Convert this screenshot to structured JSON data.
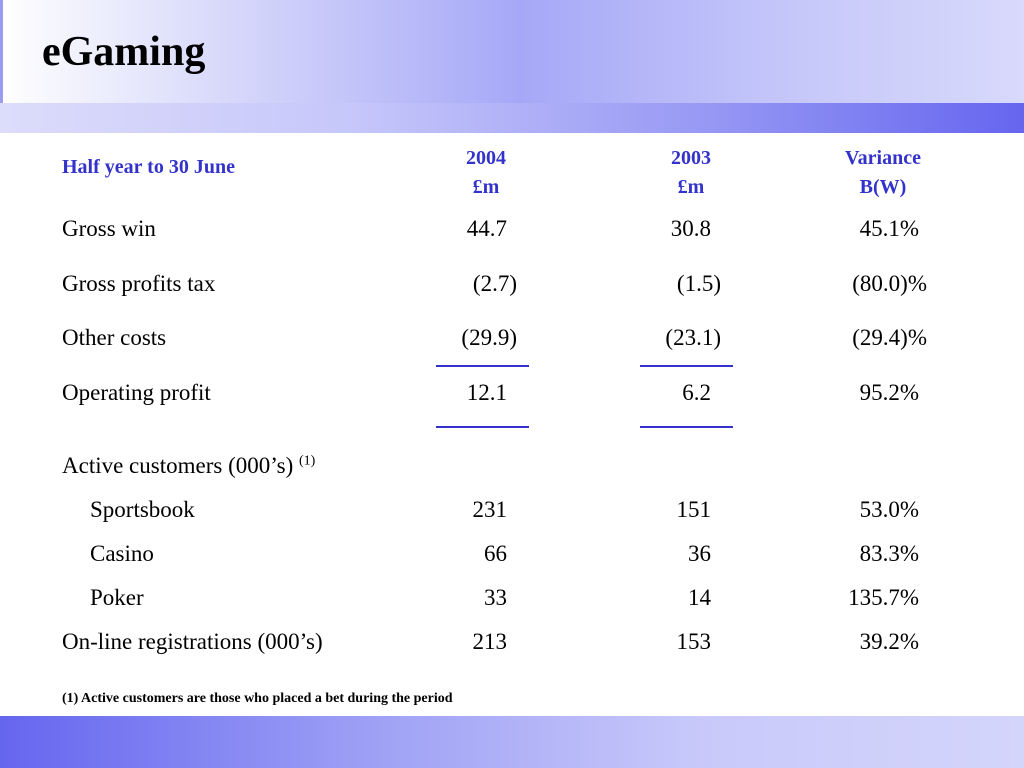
{
  "title": "eGaming",
  "table": {
    "header": {
      "label": "Half year to 30 June",
      "col_2004": {
        "year": "2004",
        "unit": "£m"
      },
      "col_2003": {
        "year": "2003",
        "unit": "£m"
      },
      "col_variance": {
        "line1": "Variance",
        "line2": "B(W)"
      }
    },
    "rows": [
      {
        "label": "Gross win",
        "v2004": "44.7",
        "v2003": "30.8",
        "variance": "45.1%"
      },
      {
        "label": "Gross profits tax",
        "v2004": "(2.7)",
        "v2003": "(1.5)",
        "variance": "(80.0)%"
      },
      {
        "label": "Other costs",
        "v2004": "(29.9)",
        "v2003": "(23.1)",
        "variance": "(29.4)%"
      },
      {
        "label": "Operating profit",
        "v2004": "12.1",
        "v2003": "6.2",
        "variance": "95.2%"
      }
    ],
    "customers": {
      "label": "Active customers (000’s)",
      "note_marker": "(1)",
      "items": [
        {
          "label": "Sportsbook",
          "v2004": "231",
          "v2003": "151",
          "variance": "53.0%"
        },
        {
          "label": "Casino",
          "v2004": "66",
          "v2003": "36",
          "variance": "83.3%"
        },
        {
          "label": "Poker",
          "v2004": "33",
          "v2003": "14",
          "variance": "135.7%"
        }
      ]
    },
    "registrations": {
      "label": "On-line registrations (000’s)",
      "v2004": "213",
      "v2003": "153",
      "variance": "39.2%"
    }
  },
  "footnote": "(1) Active customers are those who placed a bet during the period",
  "colors": {
    "accent": "#3333cc",
    "band_dark": "#6566ef",
    "band_light": "#d8d9fb"
  }
}
